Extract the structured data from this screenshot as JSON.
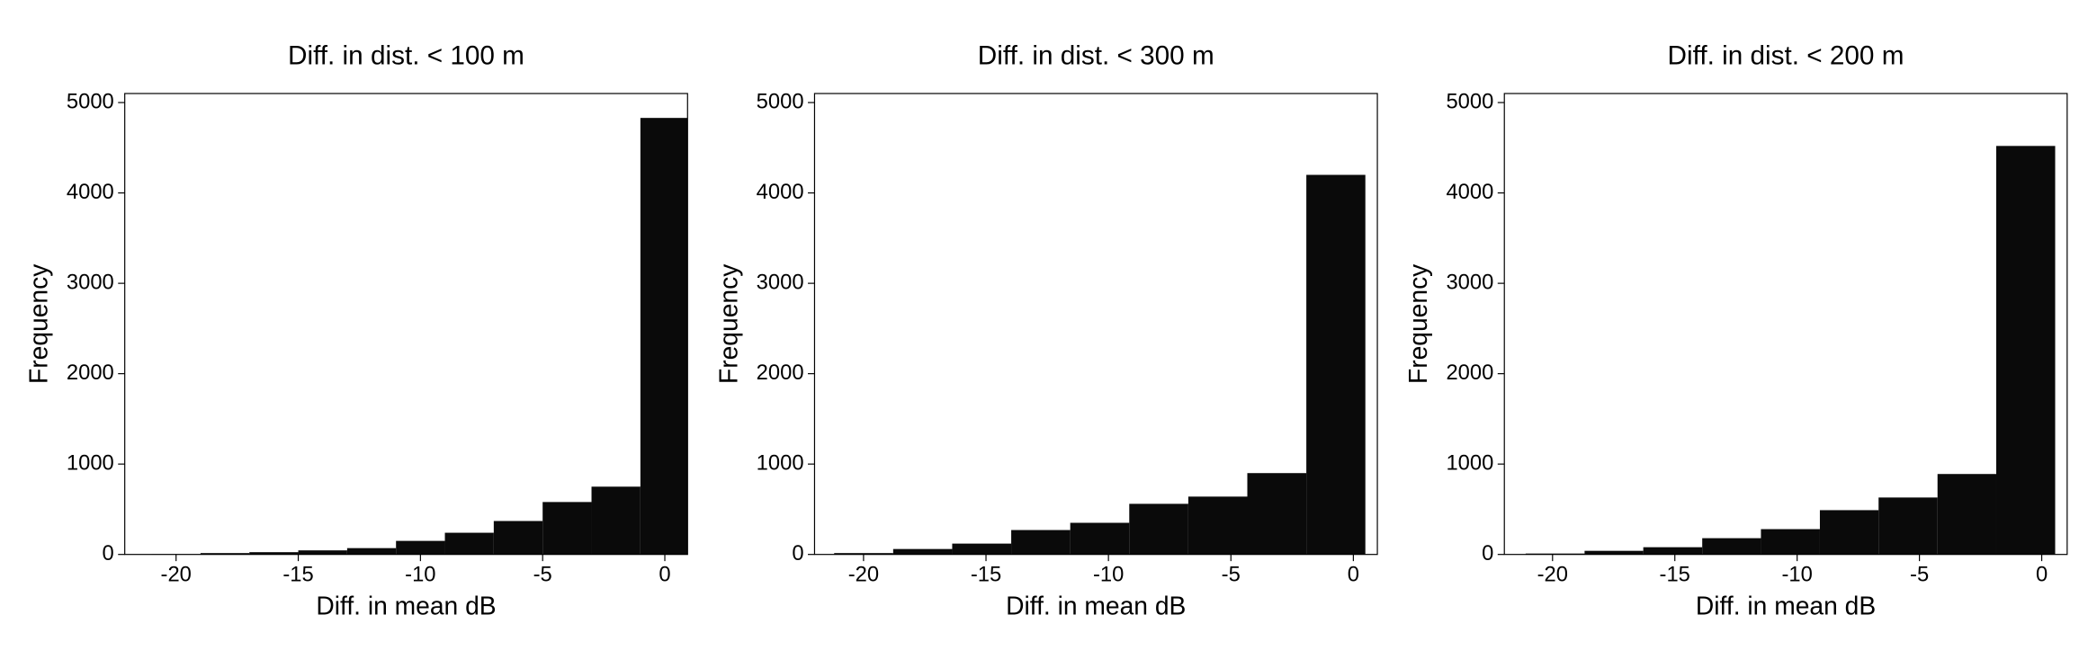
{
  "chart_data": [
    {
      "type": "histogram",
      "title": "Diff. in dist. < 100 m",
      "xlabel": "Diff. in mean dB",
      "ylabel": "Frequency",
      "bins": [
        -21,
        -19,
        -17,
        -15,
        -13,
        -11,
        -9,
        -7,
        -5,
        -3,
        -1,
        1
      ],
      "counts": [
        3,
        15,
        25,
        45,
        70,
        150,
        240,
        370,
        580,
        750,
        4830
      ],
      "color": "#0a0a0a",
      "xlim": [
        -22.1,
        0.93
      ],
      "ylim": [
        0,
        5100
      ],
      "xticks": [
        -20,
        -15,
        -10,
        -5,
        0
      ],
      "yticks": [
        0,
        1000,
        2000,
        3000,
        4000,
        5000
      ]
    },
    {
      "type": "histogram",
      "title": "Diff. in dist. < 300 m",
      "xlabel": "Diff. in mean dB",
      "ylabel": "Frequency",
      "bins": [
        -21.2,
        -18.79,
        -16.38,
        -13.97,
        -11.56,
        -9.15,
        -6.74,
        -4.33,
        -1.92,
        0.49
      ],
      "counts": [
        15,
        60,
        120,
        270,
        350,
        560,
        640,
        900,
        4200
      ],
      "color": "#0a0a0a",
      "xlim": [
        -22.0,
        0.98
      ],
      "ylim": [
        0,
        5100
      ],
      "xticks": [
        -20,
        -15,
        -10,
        -5,
        0
      ],
      "yticks": [
        0,
        1000,
        2000,
        3000,
        4000,
        5000
      ]
    },
    {
      "type": "histogram",
      "title": "Diff. in dist. < 200 m",
      "xlabel": "Diff. in mean dB",
      "ylabel": "Frequency",
      "bins": [
        -21.1,
        -18.69,
        -16.29,
        -13.88,
        -11.48,
        -9.07,
        -6.67,
        -4.26,
        -1.86,
        0.55
      ],
      "counts": [
        10,
        40,
        80,
        180,
        280,
        490,
        630,
        890,
        4520
      ],
      "color": "#0a0a0a",
      "xlim": [
        -21.97,
        1.04
      ],
      "ylim": [
        0,
        5100
      ],
      "xticks": [
        -20,
        -15,
        -10,
        -5,
        0
      ],
      "yticks": [
        0,
        1000,
        2000,
        3000,
        4000,
        5000
      ]
    }
  ]
}
